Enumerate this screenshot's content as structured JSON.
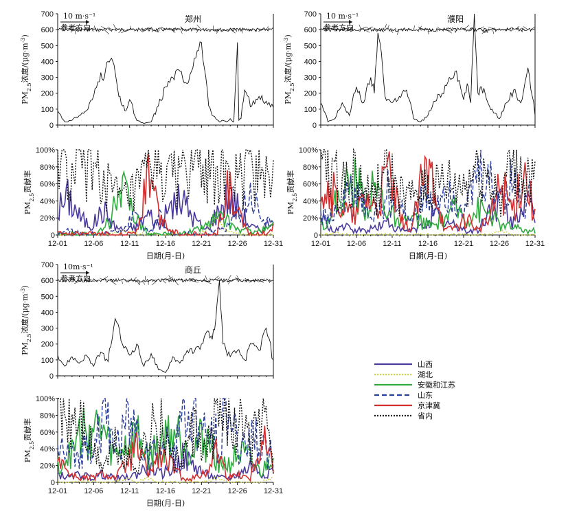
{
  "chart_data": [
    {
      "station": "郑州",
      "type": "line",
      "title": "郑州",
      "conc": {
        "ylabel": "PM2.5浓度/(μg·m⁻³)",
        "ylabel_parts": [
          "PM",
          "2.5",
          "浓度/(μg·m",
          "-3",
          ")"
        ],
        "ylim": [
          0,
          700
        ],
        "yticks": [
          0,
          100,
          200,
          300,
          400,
          500,
          600,
          700
        ],
        "x": [
          1,
          2,
          3,
          4,
          5,
          6,
          7,
          7.5,
          8,
          8.5,
          9,
          9.5,
          10,
          10.5,
          11,
          12,
          13,
          14,
          15,
          16,
          17,
          18,
          19,
          20,
          21,
          22,
          22.5,
          23,
          23.5,
          24,
          24.5,
          25,
          25.5,
          26,
          26.2,
          26.5,
          27,
          28,
          29,
          30,
          31
        ],
        "values": [
          90,
          20,
          30,
          60,
          90,
          180,
          330,
          300,
          400,
          420,
          330,
          180,
          120,
          90,
          160,
          30,
          10,
          20,
          120,
          240,
          300,
          340,
          260,
          420,
          520,
          120,
          60,
          40,
          20,
          30,
          20,
          40,
          20,
          520,
          30,
          40,
          220,
          120,
          180,
          150,
          110
        ]
      },
      "contrib": {
        "ylabel": "PM2.5贡献率",
        "ylabel_parts": [
          "PM",
          "2.5",
          "贡献率"
        ],
        "ylim": [
          0,
          100
        ],
        "yticks": [
          "0",
          "20%",
          "40%",
          "60%",
          "80%",
          "100%"
        ],
        "series": [
          {
            "name": "山西",
            "values": [
              30,
              45,
              20,
              10,
              30,
              10,
              5,
              10,
              25,
              10,
              35,
              40,
              20,
              5,
              25,
              45,
              30,
              10,
              5,
              20
            ]
          },
          {
            "name": "湖北",
            "values": [
              0,
              0,
              0,
              0,
              0,
              2,
              5,
              2,
              0,
              0,
              0,
              0,
              0,
              5,
              20,
              5,
              0,
              0,
              0,
              0
            ]
          },
          {
            "name": "安徽和江苏",
            "values": [
              0,
              0,
              0,
              0,
              5,
              30,
              50,
              20,
              0,
              0,
              0,
              0,
              5,
              10,
              20,
              15,
              5,
              5,
              5,
              10
            ]
          },
          {
            "name": "山东",
            "values": [
              0,
              5,
              0,
              0,
              0,
              5,
              10,
              25,
              0,
              20,
              0,
              0,
              0,
              0,
              5,
              10,
              30,
              50,
              20,
              10
            ]
          },
          {
            "name": "京津冀",
            "values": [
              0,
              0,
              0,
              0,
              0,
              0,
              0,
              5,
              70,
              20,
              5,
              0,
              0,
              0,
              0,
              55,
              20,
              0,
              0,
              10
            ]
          },
          {
            "name": "省内",
            "values": [
              90,
              60,
              80,
              85,
              70,
              45,
              40,
              50,
              70,
              85,
              60,
              80,
              85,
              90,
              80,
              60,
              65,
              80,
              85,
              70
            ]
          }
        ]
      }
    },
    {
      "station": "濮阳",
      "type": "line",
      "title": "濮阳",
      "conc": {
        "ylabel": "PM2.5浓度/(μg·m⁻³)",
        "ylabel_parts": [
          "PM",
          "2.5",
          "浓度/(μg·m",
          "-3",
          ")"
        ],
        "ylim": [
          0,
          700
        ],
        "yticks": [
          0,
          100,
          200,
          300,
          400,
          500,
          600,
          700
        ],
        "x": [
          1,
          2,
          3,
          4,
          5,
          6,
          7,
          8,
          8.5,
          9,
          9.5,
          10,
          11,
          12,
          13,
          14,
          15,
          16,
          17,
          18,
          19,
          20,
          21,
          21.5,
          22,
          22.5,
          23,
          23.5,
          24,
          25,
          26,
          27,
          28,
          29,
          30,
          31
        ],
        "values": [
          140,
          20,
          40,
          140,
          60,
          240,
          140,
          300,
          200,
          580,
          450,
          180,
          140,
          180,
          220,
          40,
          20,
          60,
          150,
          200,
          300,
          340,
          160,
          260,
          140,
          700,
          200,
          240,
          200,
          100,
          40,
          140,
          220,
          140,
          360,
          60
        ],
        "wind_vector": "10 m·s⁻¹",
        "wind_ref": "参考方向"
      },
      "contrib": {
        "ylabel": "PM2.5贡献率",
        "ylabel_parts": [
          "PM",
          "2.5",
          "贡献率"
        ],
        "ylim": [
          0,
          100
        ],
        "yticks": [
          "0",
          "20%",
          "40%",
          "60%",
          "80%",
          "100%"
        ],
        "series": [
          {
            "name": "山西",
            "values": [
              20,
              5,
              10,
              5,
              5,
              10,
              15,
              5,
              5,
              10,
              25,
              15,
              10,
              5,
              5,
              30,
              40,
              10,
              40,
              20
            ]
          },
          {
            "name": "湖北",
            "values": [
              0,
              2,
              0,
              0,
              0,
              0,
              0,
              0,
              0,
              0,
              0,
              0,
              0,
              0,
              0,
              0,
              5,
              0,
              0,
              0
            ]
          },
          {
            "name": "安徽和江苏",
            "values": [
              10,
              30,
              50,
              60,
              40,
              55,
              30,
              10,
              20,
              15,
              10,
              20,
              30,
              20,
              30,
              25,
              10,
              10,
              5,
              5
            ]
          },
          {
            "name": "山东",
            "values": [
              30,
              20,
              40,
              55,
              30,
              25,
              50,
              30,
              20,
              40,
              30,
              55,
              40,
              30,
              70,
              55,
              45,
              60,
              30,
              55
            ]
          },
          {
            "name": "京津冀",
            "values": [
              70,
              50,
              30,
              20,
              45,
              30,
              75,
              20,
              5,
              60,
              70,
              5,
              10,
              20,
              5,
              20,
              60,
              30,
              80,
              20
            ]
          },
          {
            "name": "省内",
            "values": [
              100,
              75,
              60,
              75,
              45,
              55,
              70,
              45,
              40,
              60,
              50,
              60,
              55,
              60,
              85,
              60,
              50,
              80,
              70,
              60
            ]
          }
        ]
      }
    },
    {
      "station": "商丘",
      "type": "line",
      "title": "商丘",
      "conc": {
        "ylabel": "PM2.5浓度/(μg·m⁻³)",
        "ylabel_parts": [
          "PM",
          "2.5",
          "浓度/(μg·m",
          "-3",
          ")"
        ],
        "ylim": [
          0,
          700
        ],
        "yticks": [
          0,
          100,
          200,
          300,
          400,
          500,
          600,
          700
        ],
        "x": [
          1,
          2,
          3,
          4,
          5,
          6,
          7,
          8,
          9,
          10,
          11,
          12,
          13,
          14,
          15,
          16,
          17,
          18,
          19,
          20,
          21,
          22,
          22.5,
          23,
          23.5,
          24,
          25,
          26,
          27,
          28,
          29,
          30,
          31
        ],
        "values": [
          130,
          60,
          120,
          80,
          130,
          60,
          150,
          90,
          360,
          200,
          130,
          200,
          60,
          140,
          40,
          20,
          120,
          80,
          160,
          150,
          200,
          280,
          230,
          360,
          600,
          200,
          120,
          160,
          100,
          200,
          160,
          300,
          100
        ],
        "wind_vector": "10m·s⁻¹",
        "wind_ref": "参考方向"
      },
      "contrib": {
        "ylabel": "PM2.5贡献率",
        "ylabel_parts": [
          "PM",
          "2.5",
          "贡献率"
        ],
        "ylim": [
          0,
          100
        ],
        "yticks": [
          "0",
          "20%",
          "40%",
          "60%",
          "80%",
          "100%"
        ],
        "series": [
          {
            "name": "山西",
            "values": [
              10,
              5,
              10,
              5,
              10,
              5,
              5,
              10,
              20,
              10,
              15,
              30,
              20,
              10,
              5,
              5,
              10,
              20,
              10,
              15
            ]
          },
          {
            "name": "湖北",
            "values": [
              0,
              0,
              0,
              0,
              0,
              0,
              5,
              0,
              5,
              0,
              0,
              0,
              0,
              0,
              5,
              0,
              0,
              0,
              0,
              5
            ]
          },
          {
            "name": "安徽和江苏",
            "values": [
              20,
              30,
              55,
              65,
              60,
              30,
              45,
              55,
              30,
              45,
              60,
              55,
              40,
              55,
              30,
              20,
              35,
              25,
              10,
              40
            ]
          },
          {
            "name": "山东",
            "values": [
              40,
              30,
              35,
              55,
              75,
              45,
              70,
              60,
              40,
              35,
              50,
              70,
              80,
              50,
              55,
              85,
              40,
              60,
              40,
              30
            ]
          },
          {
            "name": "京津冀",
            "values": [
              35,
              10,
              5,
              5,
              10,
              5,
              20,
              40,
              10,
              30,
              20,
              5,
              5,
              10,
              40,
              5,
              10,
              5,
              60,
              20
            ]
          },
          {
            "name": "省内",
            "values": [
              95,
              70,
              80,
              40,
              20,
              45,
              30,
              20,
              60,
              70,
              30,
              25,
              60,
              30,
              80,
              90,
              75,
              40,
              80,
              20
            ]
          }
        ]
      }
    }
  ],
  "wind": {
    "vector_label": "10 m·s⁻¹",
    "ref_label": "参考方向"
  },
  "xaxis": {
    "ticks": [
      "12-01",
      "12-06",
      "12-11",
      "12-16",
      "12-21",
      "12-26",
      "12-31"
    ],
    "label": "日期(月-日)"
  },
  "legend": [
    {
      "name": "山西",
      "color": "#4b3a9c",
      "style": "solid"
    },
    {
      "name": "湖北",
      "color": "#c9d43a",
      "style": "dotted"
    },
    {
      "name": "安徽和江苏",
      "color": "#2faa3e",
      "style": "solid"
    },
    {
      "name": "山东",
      "color": "#2b3e97",
      "style": "dashed"
    },
    {
      "name": "京津冀",
      "color": "#d32f2f",
      "style": "solid"
    },
    {
      "name": "省内",
      "color": "#111111",
      "style": "dotted"
    }
  ]
}
